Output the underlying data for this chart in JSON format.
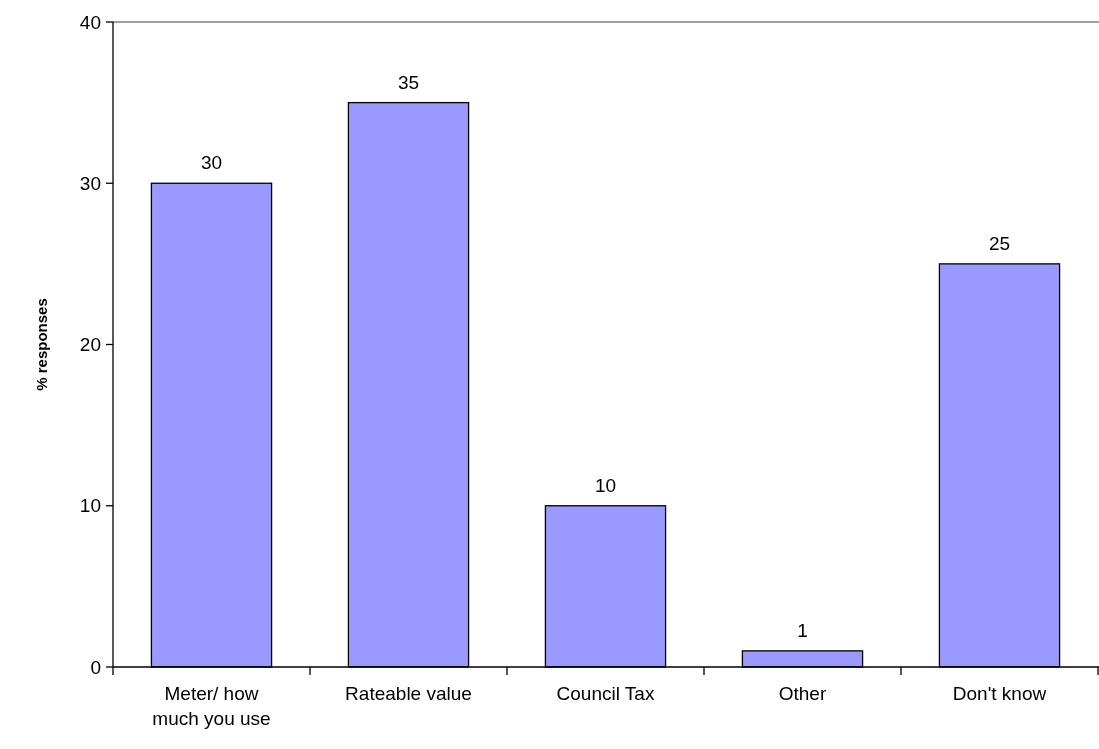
{
  "chart_data": {
    "type": "bar",
    "ylabel": "% responses",
    "categories": [
      "Meter/ how much you use",
      "Rateable value",
      "Council Tax",
      "Other",
      "Don't know"
    ],
    "values": [
      30,
      35,
      10,
      1,
      25
    ],
    "color": "#9999ff",
    "ylim": [
      0,
      40
    ],
    "yticks": [
      0,
      10,
      20,
      30,
      40
    ],
    "data_labels": true
  }
}
